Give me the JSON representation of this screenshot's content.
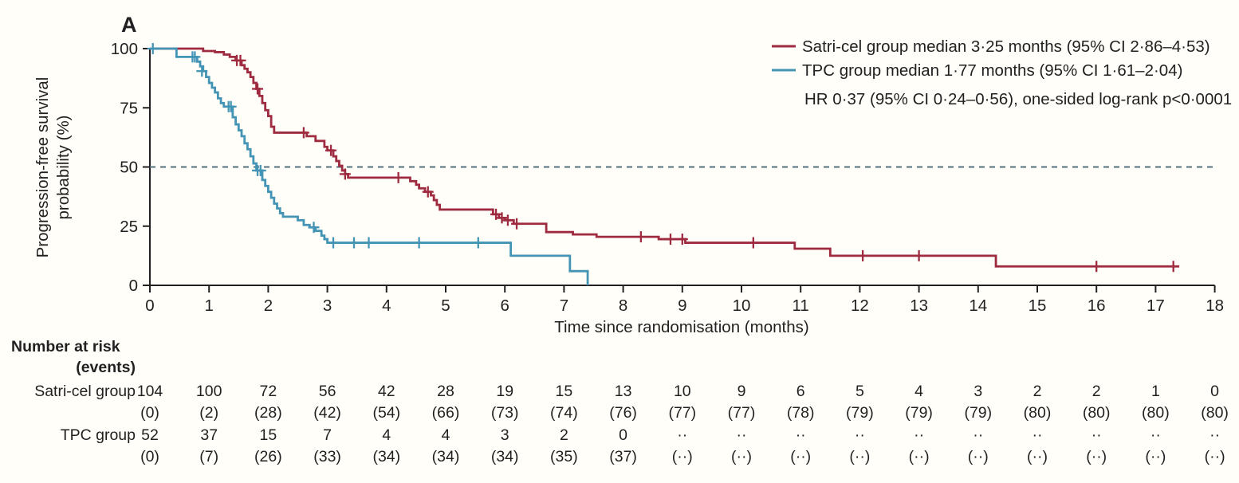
{
  "panel_label": "A",
  "legend": {
    "satri_label": "Satri-cel group median 3·25 months (95% CI 2·86–4·53)",
    "tpc_label": "TPC group median 1·77 months (95% CI 1·61–2·04)",
    "stats_line": "HR 0·37 (95% CI 0·24–0·56), one-sided log-rank p<0·0001"
  },
  "colors": {
    "satri": "#9f2b40",
    "tpc": "#4394b5",
    "median_dash": "#53707e",
    "axis": "#231f20",
    "background": "#fffef8"
  },
  "chart_data": {
    "type": "line",
    "subtype": "kaplan-meier-step",
    "title": "",
    "xlabel": "Time since randomisation (months)",
    "ylabel_lines": [
      "Progression-free survival",
      "probability (%)"
    ],
    "xlim": [
      0,
      18
    ],
    "ylim": [
      0,
      100
    ],
    "xticks": [
      0,
      1,
      2,
      3,
      4,
      5,
      6,
      7,
      8,
      9,
      10,
      11,
      12,
      13,
      14,
      15,
      16,
      17,
      18
    ],
    "yticks": [
      0,
      25,
      50,
      75,
      100
    ],
    "reference_line_pct": 50,
    "grid": "off",
    "legend_position": "top-right",
    "series": [
      {
        "name": "Satri-cel group",
        "median_months": "3·25",
        "ci": "2·86–4·53",
        "color": "#9f2b40",
        "steps": [
          [
            0,
            100
          ],
          [
            0.9,
            99
          ],
          [
            1.1,
            98.5
          ],
          [
            1.25,
            97.5
          ],
          [
            1.35,
            96.5
          ],
          [
            1.45,
            95
          ],
          [
            1.55,
            93
          ],
          [
            1.6,
            91.5
          ],
          [
            1.65,
            90
          ],
          [
            1.7,
            88
          ],
          [
            1.75,
            85.5
          ],
          [
            1.8,
            83
          ],
          [
            1.85,
            80
          ],
          [
            1.9,
            77
          ],
          [
            1.95,
            74
          ],
          [
            2.0,
            71.5
          ],
          [
            2.05,
            67
          ],
          [
            2.1,
            64.5
          ],
          [
            2.65,
            63
          ],
          [
            2.8,
            61
          ],
          [
            2.95,
            58.5
          ],
          [
            3.0,
            57
          ],
          [
            3.1,
            54.5
          ],
          [
            3.15,
            52.5
          ],
          [
            3.2,
            50.5
          ],
          [
            3.25,
            48.5
          ],
          [
            3.3,
            47
          ],
          [
            3.35,
            45.5
          ],
          [
            4.4,
            44
          ],
          [
            4.5,
            42.5
          ],
          [
            4.55,
            41
          ],
          [
            4.65,
            39.5
          ],
          [
            4.75,
            38
          ],
          [
            4.8,
            36
          ],
          [
            4.85,
            34
          ],
          [
            4.9,
            32
          ],
          [
            5.8,
            30
          ],
          [
            5.9,
            28.5
          ],
          [
            6.0,
            27.5
          ],
          [
            6.15,
            26
          ],
          [
            6.7,
            22.5
          ],
          [
            7.15,
            21.5
          ],
          [
            7.55,
            20.5
          ],
          [
            8.6,
            19.5
          ],
          [
            9.05,
            18
          ],
          [
            10.9,
            15.5
          ],
          [
            11.5,
            12.5
          ],
          [
            14.3,
            8
          ]
        ],
        "end_month": 17.4,
        "censors": [
          [
            1.47,
            95
          ],
          [
            1.53,
            95
          ],
          [
            1.82,
            83
          ],
          [
            2.6,
            64.5
          ],
          [
            3.06,
            57
          ],
          [
            3.3,
            47
          ],
          [
            4.2,
            45.5
          ],
          [
            4.7,
            39.5
          ],
          [
            5.85,
            30
          ],
          [
            5.95,
            28.5
          ],
          [
            6.05,
            27.5
          ],
          [
            6.2,
            26
          ],
          [
            8.3,
            20.5
          ],
          [
            8.8,
            19.5
          ],
          [
            9.0,
            19.5
          ],
          [
            10.2,
            18
          ],
          [
            12.05,
            12.5
          ],
          [
            13.0,
            12.5
          ],
          [
            16.0,
            8
          ],
          [
            17.3,
            8
          ]
        ]
      },
      {
        "name": "TPC group",
        "median_months": "1·77",
        "ci": "1·61–2·04",
        "color": "#4394b5",
        "steps": [
          [
            0,
            100
          ],
          [
            0.45,
            96.5
          ],
          [
            0.8,
            94.5
          ],
          [
            0.85,
            92.5
          ],
          [
            0.9,
            90.5
          ],
          [
            0.95,
            88
          ],
          [
            1.0,
            85.5
          ],
          [
            1.05,
            83.5
          ],
          [
            1.1,
            81.5
          ],
          [
            1.15,
            79
          ],
          [
            1.2,
            77
          ],
          [
            1.25,
            75.5
          ],
          [
            1.4,
            71
          ],
          [
            1.45,
            68
          ],
          [
            1.5,
            65.5
          ],
          [
            1.55,
            63
          ],
          [
            1.6,
            60
          ],
          [
            1.65,
            57.5
          ],
          [
            1.7,
            54.5
          ],
          [
            1.75,
            51.5
          ],
          [
            1.8,
            48.5
          ],
          [
            1.9,
            44.5
          ],
          [
            1.95,
            42
          ],
          [
            2.0,
            39.5
          ],
          [
            2.05,
            37
          ],
          [
            2.1,
            34.5
          ],
          [
            2.15,
            32.5
          ],
          [
            2.2,
            30.5
          ],
          [
            2.25,
            29
          ],
          [
            2.5,
            27.5
          ],
          [
            2.6,
            25.5
          ],
          [
            2.7,
            24.5
          ],
          [
            2.8,
            23
          ],
          [
            2.9,
            21
          ],
          [
            2.95,
            19.5
          ],
          [
            3.0,
            18
          ],
          [
            6.1,
            12.5
          ],
          [
            7.1,
            6
          ],
          [
            7.4,
            0
          ]
        ],
        "end_month": 7.4,
        "censors": [
          [
            0.05,
            100
          ],
          [
            0.72,
            96.5
          ],
          [
            0.76,
            96.5
          ],
          [
            0.88,
            90.5
          ],
          [
            1.33,
            75.5
          ],
          [
            1.37,
            75.5
          ],
          [
            1.82,
            48.5
          ],
          [
            1.87,
            48.5
          ],
          [
            2.77,
            24.5
          ],
          [
            3.1,
            18
          ],
          [
            3.45,
            18
          ],
          [
            3.7,
            18
          ],
          [
            4.55,
            18
          ],
          [
            5.55,
            18
          ]
        ]
      }
    ]
  },
  "risk_table": {
    "header": "Number at risk",
    "subheader": "(events)",
    "rows": [
      {
        "label": "Satri-cel group",
        "n": [
          "104",
          "100",
          "72",
          "56",
          "42",
          "28",
          "19",
          "15",
          "13",
          "10",
          "9",
          "6",
          "5",
          "4",
          "3",
          "2",
          "2",
          "1",
          "0"
        ],
        "events": [
          "(0)",
          "(2)",
          "(28)",
          "(42)",
          "(54)",
          "(66)",
          "(73)",
          "(74)",
          "(76)",
          "(77)",
          "(77)",
          "(78)",
          "(79)",
          "(79)",
          "(79)",
          "(80)",
          "(80)",
          "(80)",
          "(80)"
        ]
      },
      {
        "label": "TPC group",
        "n": [
          "52",
          "37",
          "15",
          "7",
          "4",
          "4",
          "3",
          "2",
          "0",
          "··",
          "··",
          "··",
          "··",
          "··",
          "··",
          "··",
          "··",
          "··",
          "··"
        ],
        "events": [
          "(0)",
          "(7)",
          "(26)",
          "(33)",
          "(34)",
          "(34)",
          "(34)",
          "(35)",
          "(37)",
          "(··)",
          "(··)",
          "(··)",
          "(··)",
          "(··)",
          "(··)",
          "(··)",
          "(··)",
          "(··)",
          "(··)"
        ]
      }
    ]
  }
}
